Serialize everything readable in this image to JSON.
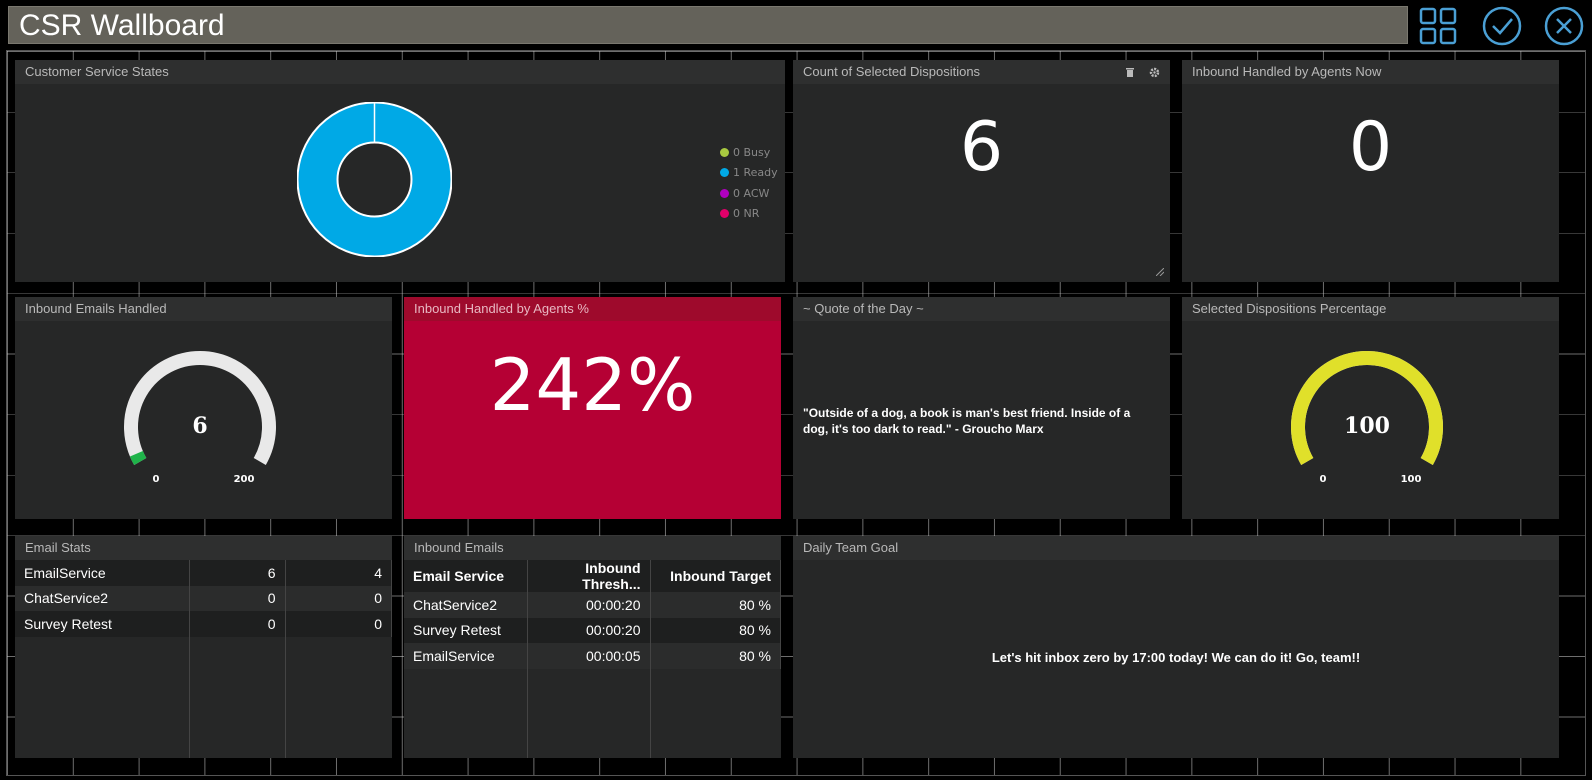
{
  "app": {
    "title": "CSR Wallboard"
  },
  "colors": {
    "accent": "#4a9fd4",
    "titlebar": "#64625a",
    "ready": "#00a9e6",
    "busy": "#a8c940",
    "acw": "#b000c0",
    "nr": "#e0006a",
    "alert": "#b50034",
    "gauge_yellow": "#e0e02a"
  },
  "toolbar": {
    "icons": [
      "grid-icon",
      "check-circle-icon",
      "close-circle-icon"
    ]
  },
  "panels": {
    "states": {
      "title": "Customer Service States",
      "legend": [
        {
          "label": "0 Busy"
        },
        {
          "label": "1 Ready"
        },
        {
          "label": "0 ACW"
        },
        {
          "label": "0 NR"
        }
      ]
    },
    "dispositions": {
      "title": "Count of Selected Dispositions",
      "value": "6",
      "icons": [
        "trash-icon",
        "gear-icon"
      ]
    },
    "inbound_now": {
      "title": "Inbound Handled by Agents Now",
      "value": "0"
    },
    "emails_handled": {
      "title": "Inbound Emails Handled",
      "value": "6",
      "min": "0",
      "max": "200",
      "fraction": 0.03
    },
    "inbound_pct": {
      "title": "Inbound Handled by Agents %",
      "value": "242%"
    },
    "quote": {
      "title": "~ Quote of the Day ~",
      "text": "\"Outside of a dog, a book is man's best friend. Inside of a dog, it's too dark to read.\" - Groucho Marx"
    },
    "disp_pct": {
      "title": "Selected Dispositions Percentage",
      "value": "100",
      "min": "0",
      "max": "100",
      "fraction": 1.0
    },
    "email_stats": {
      "title": "Email Stats",
      "rows": [
        [
          "EmailService",
          "6",
          "4"
        ],
        [
          "ChatService2",
          "0",
          "0"
        ],
        [
          "Survey Retest",
          "0",
          "0"
        ]
      ]
    },
    "inbound_emails": {
      "title": "Inbound Emails",
      "headers": [
        "Email Service",
        "Inbound Thresh...",
        "Inbound Target"
      ],
      "rows": [
        [
          "ChatService2",
          "00:00:20",
          "80 %"
        ],
        [
          "Survey Retest",
          "00:00:20",
          "80 %"
        ],
        [
          "EmailService",
          "00:00:05",
          "80 %"
        ]
      ]
    },
    "goal": {
      "title": "Daily Team Goal",
      "text": "Let's hit inbox zero by 17:00 today! We can do it! Go, team!!"
    }
  }
}
